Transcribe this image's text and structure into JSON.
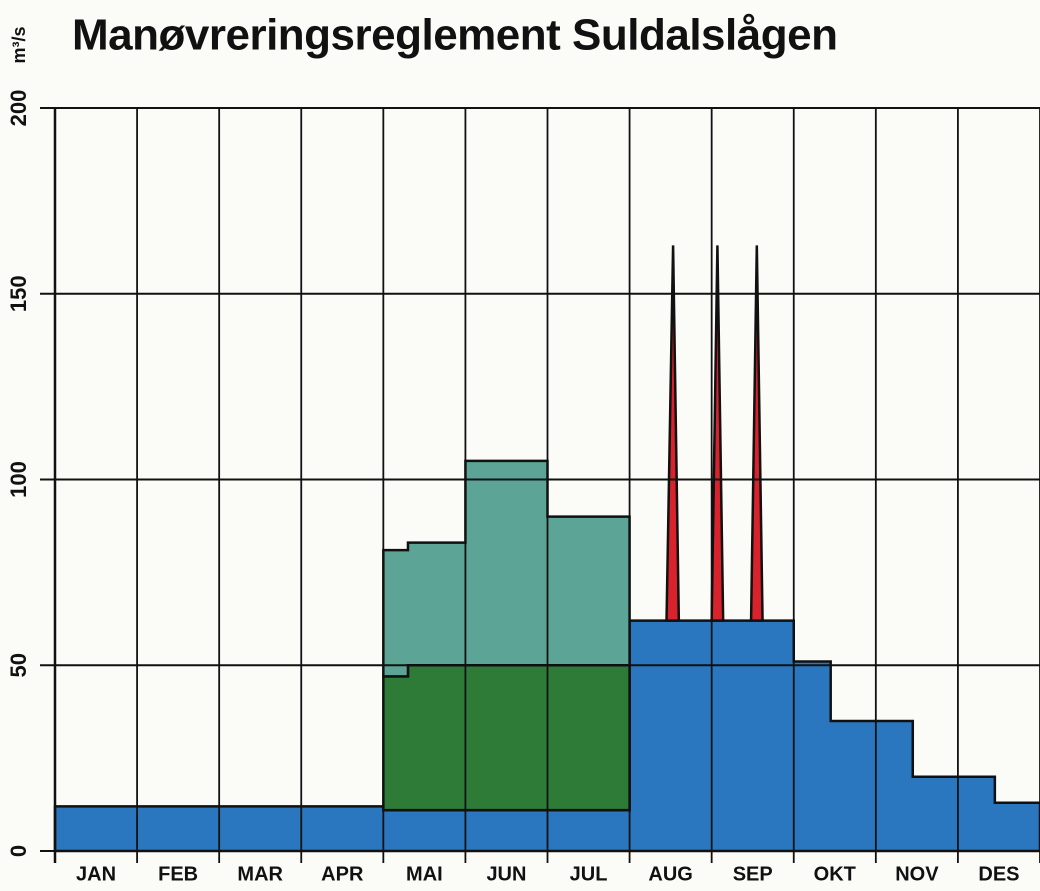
{
  "chart_data": {
    "type": "area",
    "title": "Manøvreringsreglement Suldalslågen",
    "ylabel": "m³/s",
    "categories": [
      "JAN",
      "FEB",
      "MAR",
      "APR",
      "MAI",
      "JUN",
      "JUL",
      "AUG",
      "SEP",
      "OKT",
      "NOV",
      "DES"
    ],
    "xlim": [
      0,
      12
    ],
    "ylim": [
      0,
      200
    ],
    "yticks": [
      0,
      50,
      100,
      150,
      200
    ],
    "grid": true,
    "series": [
      {
        "color": "#2a77bf",
        "x": [
          0,
          0,
          4,
          4,
          7,
          7,
          9,
          9,
          9.45,
          9.45,
          10.45,
          10.45,
          11.45,
          11.45,
          12,
          12
        ],
        "values": [
          0,
          12,
          12,
          11,
          11,
          62,
          62,
          51,
          51,
          35,
          35,
          20,
          20,
          13,
          13,
          0
        ]
      },
      {
        "color": "#2e7b38",
        "x": [
          4,
          4,
          4.3,
          4.3,
          7,
          7
        ],
        "values": [
          11,
          47,
          47,
          50,
          50,
          11
        ]
      },
      {
        "color": "#5ca596",
        "x": [
          4,
          4,
          4.3,
          4.3,
          5,
          5,
          6,
          6,
          7,
          7,
          4.3,
          4.3
        ],
        "values": [
          47,
          81,
          81,
          83,
          83,
          105,
          105,
          90,
          90,
          50,
          50,
          47
        ]
      },
      {
        "color": "#d8232c",
        "x": [
          7.45,
          7.53,
          7.6
        ],
        "values": [
          62,
          163,
          62
        ]
      },
      {
        "color": "#d8232c",
        "x": [
          8.0,
          8.07,
          8.14
        ],
        "values": [
          62,
          163,
          62
        ]
      },
      {
        "color": "#d8232c",
        "x": [
          8.48,
          8.55,
          8.62
        ],
        "values": [
          62,
          163,
          62
        ]
      }
    ]
  }
}
